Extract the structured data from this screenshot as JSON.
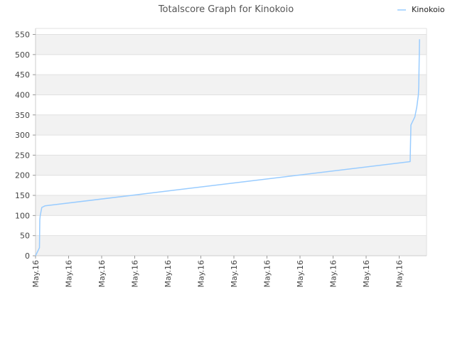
{
  "chart_data": {
    "type": "line",
    "title": "Totalscore Graph for Kinokoio",
    "xlabel": "",
    "ylabel": "",
    "ylim": [
      0,
      565
    ],
    "yticks": [
      0,
      50,
      100,
      150,
      200,
      250,
      300,
      350,
      400,
      450,
      500,
      550
    ],
    "xticks": [
      "May.16",
      "May.16",
      "May.16",
      "May.16",
      "May.16",
      "May.16",
      "May.16",
      "May.16",
      "May.16",
      "May.16",
      "May.16",
      "May.16"
    ],
    "xlim": [
      0,
      100
    ],
    "grid": "horizontal bands",
    "legend_position": "top-right",
    "series": [
      {
        "name": "Kinokoio",
        "color": "#99ccff",
        "x": [
          0,
          1,
          1.1,
          1.2,
          1.6,
          2.4,
          95.8,
          96.0,
          97.0,
          97.5,
          97.9,
          98.0,
          98.2
        ],
        "y": [
          0,
          20,
          90,
          100,
          120,
          124,
          234,
          325,
          345,
          370,
          400,
          420,
          538
        ]
      }
    ]
  }
}
